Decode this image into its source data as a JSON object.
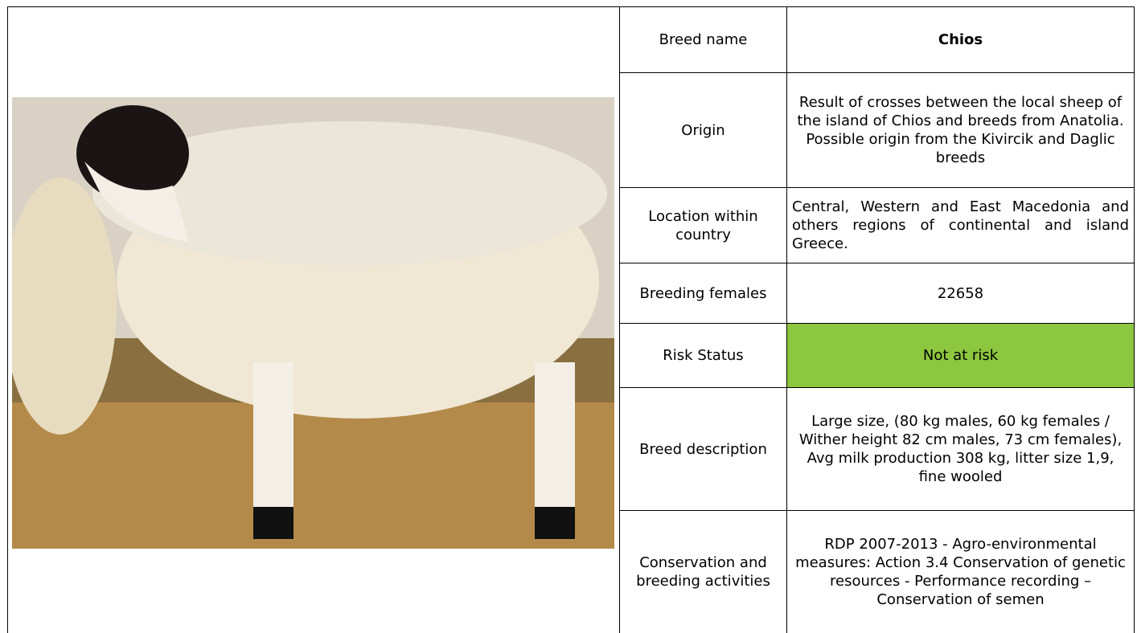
{
  "table": {
    "rows": [
      [
        "Breed name",
        "Chios"
      ],
      [
        "Origin",
        "Result of crosses between the local sheep of the island of Chios and breeds from Anatolia. Possible origin from the Kivircik and Daglic breeds"
      ],
      [
        "Location within country",
        "Central, Western and East Macedonia and others regions of continental and island Greece."
      ],
      [
        "Breeding females",
        "22658"
      ],
      [
        "Risk Status",
        "Not at risk"
      ],
      [
        "Breed description",
        "Large size, (80 kg males, 60 kg females / Wither height 82 cm males, 73 cm females), Avg milk production 308 kg, litter size 1,9, fine wooled"
      ],
      [
        "Conservation and breeding activities",
        "RDP 2007-2013 - Agro-environmental measures: Action 3.4 Conservation of genetic resources - Performance recording – Conservation of semen"
      ]
    ]
  }
}
